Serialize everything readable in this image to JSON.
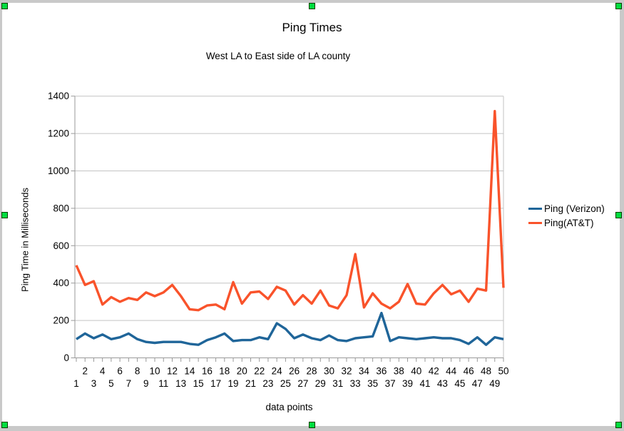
{
  "chart_data": {
    "type": "line",
    "title": "Ping Times",
    "subtitle": "West LA to East side of LA county",
    "xlabel": "data points",
    "ylabel": "Ping Time in Milliseconds",
    "ylim": [
      0,
      1400
    ],
    "ytick_interval": 200,
    "yticks": [
      0,
      200,
      400,
      600,
      800,
      1000,
      1200,
      1400
    ],
    "grid": true,
    "legend_position": "right",
    "x": [
      1,
      2,
      3,
      4,
      5,
      6,
      7,
      8,
      9,
      10,
      11,
      12,
      13,
      14,
      15,
      16,
      17,
      18,
      19,
      20,
      21,
      22,
      23,
      24,
      25,
      26,
      27,
      28,
      29,
      30,
      31,
      32,
      33,
      34,
      35,
      36,
      37,
      38,
      39,
      40,
      41,
      42,
      43,
      44,
      45,
      46,
      47,
      48,
      49,
      50
    ],
    "series": [
      {
        "name": "Ping (Verizon)",
        "color": "#1F6599",
        "values": [
          100,
          130,
          105,
          125,
          100,
          110,
          130,
          100,
          85,
          80,
          85,
          85,
          85,
          75,
          70,
          95,
          110,
          130,
          90,
          95,
          95,
          110,
          100,
          185,
          155,
          105,
          125,
          105,
          95,
          120,
          95,
          90,
          105,
          110,
          115,
          240,
          90,
          110,
          105,
          100,
          105,
          110,
          105,
          105,
          95,
          75,
          110,
          70,
          110,
          100
        ]
      },
      {
        "name": "Ping(AT&T)",
        "color": "#F9532B",
        "values": [
          495,
          390,
          410,
          285,
          325,
          300,
          320,
          310,
          350,
          330,
          350,
          390,
          330,
          260,
          255,
          280,
          285,
          260,
          405,
          290,
          350,
          355,
          315,
          380,
          360,
          285,
          335,
          290,
          360,
          280,
          265,
          335,
          555,
          270,
          345,
          290,
          265,
          300,
          395,
          290,
          285,
          345,
          390,
          340,
          360,
          300,
          370,
          360,
          1320,
          375
        ]
      }
    ]
  },
  "selection": {
    "handle_color": "#00DD40"
  },
  "style": {
    "gridline_color": "#C3C3C3",
    "axis_color": "#999999"
  }
}
